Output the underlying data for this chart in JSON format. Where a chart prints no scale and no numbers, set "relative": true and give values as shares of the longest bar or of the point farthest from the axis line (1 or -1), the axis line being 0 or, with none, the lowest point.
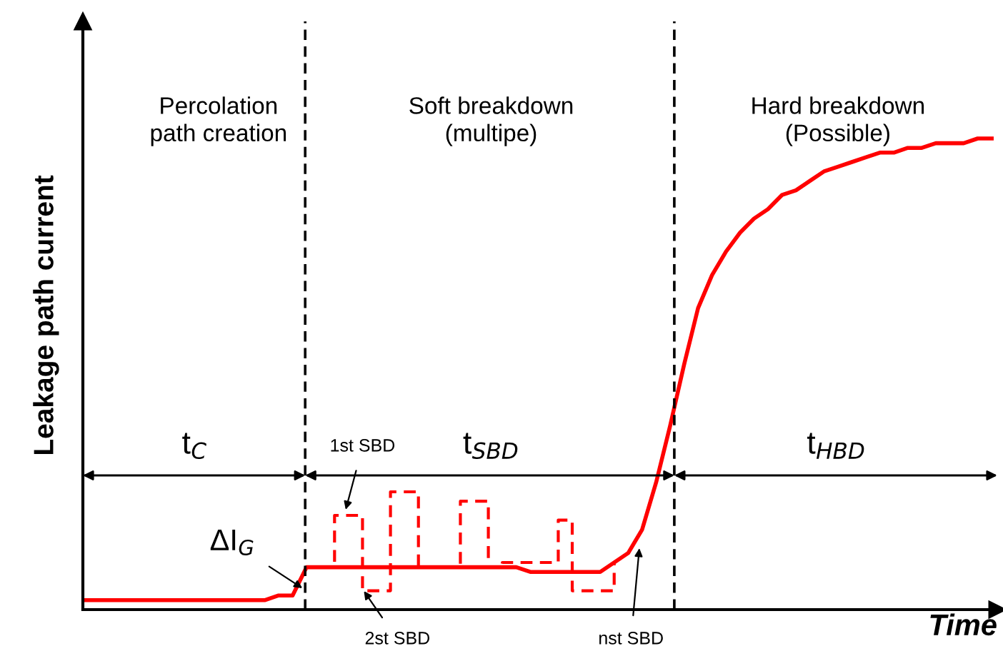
{
  "chart_data": {
    "type": "line",
    "relative": true,
    "xlabel": "Time",
    "ylabel": "Leakage path current",
    "grid": false,
    "tick_labels": false,
    "marker": "none",
    "categories": [
      null,
      null,
      null,
      null,
      null,
      null,
      null,
      null,
      null,
      null,
      null,
      null,
      null,
      null,
      null,
      null,
      null,
      null,
      null,
      null,
      null,
      null,
      null,
      null,
      null,
      null,
      null,
      null,
      null,
      null,
      null,
      null,
      null,
      null,
      null,
      null,
      null,
      null,
      null,
      null,
      null,
      null,
      null,
      null,
      null,
      null,
      null,
      null,
      null,
      null,
      null,
      null,
      null,
      null,
      null,
      null,
      null,
      null,
      null,
      null,
      null,
      null,
      null,
      null,
      null,
      null
    ],
    "series": [
      {
        "color": "#ff0000",
        "line_style": "solid",
        "values": [
          0.02,
          0.02,
          0.02,
          0.02,
          0.02,
          0.02,
          0.02,
          0.02,
          0.02,
          0.02,
          0.02,
          0.02,
          0.02,
          0.02,
          0.03,
          0.03,
          0.09,
          0.09,
          0.09,
          0.09,
          0.09,
          0.09,
          0.09,
          0.09,
          0.09,
          0.09,
          0.09,
          0.09,
          0.09,
          0.09,
          0.09,
          0.09,
          0.08,
          0.08,
          0.08,
          0.08,
          0.08,
          0.08,
          0.1,
          0.12,
          0.17,
          0.27,
          0.39,
          0.52,
          0.64,
          0.71,
          0.76,
          0.8,
          0.83,
          0.85,
          0.88,
          0.89,
          0.91,
          0.93,
          0.94,
          0.95,
          0.96,
          0.97,
          0.97,
          0.98,
          0.98,
          0.99,
          0.99,
          0.99,
          1.0,
          1.0
        ]
      },
      {
        "type": "step",
        "color": "#ff0000",
        "line_style": "dashed",
        "values": [
          null,
          null,
          null,
          null,
          null,
          null,
          null,
          null,
          null,
          null,
          null,
          null,
          null,
          null,
          null,
          null,
          null,
          0.09,
          0.2,
          0.2,
          0.04,
          0.04,
          0.25,
          0.25,
          0.09,
          0.09,
          0.09,
          0.23,
          0.23,
          0.09,
          0.1,
          0.1,
          0.1,
          0.1,
          0.19,
          0.04,
          0.04,
          0.04,
          0.1,
          null,
          null,
          null,
          null,
          null,
          null,
          null,
          null,
          null,
          null,
          null,
          null,
          null,
          null,
          null,
          null,
          null,
          null,
          null,
          null,
          null,
          null,
          null,
          null,
          null,
          null,
          null
        ]
      }
    ],
    "annotations": [
      "Percolation\npath creation",
      "Soft breakdown\n(multipe)",
      "Hard breakdown\n(Possible)",
      "t$_{C}$",
      "t$_{SBD}$",
      "t$_{HBD}$",
      "ΔI$_{G}$",
      "1st SBD",
      "2st SBD",
      "nst SBD"
    ]
  }
}
